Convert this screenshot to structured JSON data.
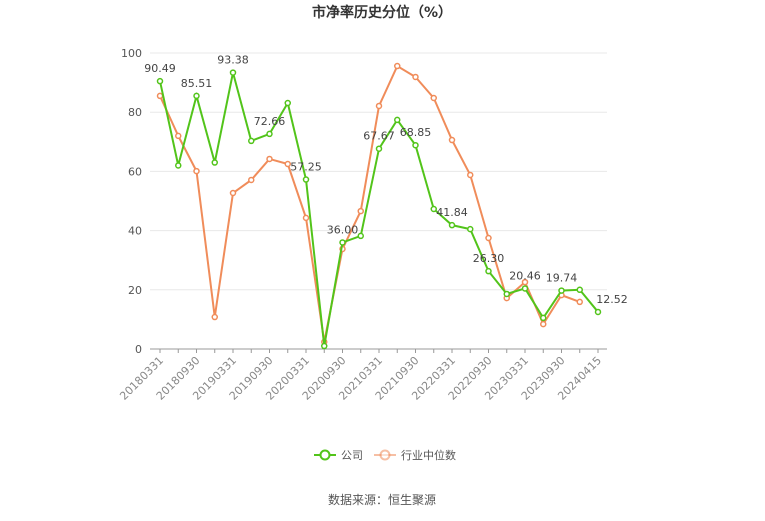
{
  "chart_data": {
    "type": "line",
    "title": "市净率历史分位（%）",
    "categories": [
      "20180331",
      null,
      "20180930",
      null,
      "20190331",
      null,
      "20190930",
      null,
      "20200331",
      null,
      "20200930",
      null,
      "20210331",
      null,
      "20210930",
      null,
      "20220331",
      null,
      "20220930",
      null,
      "20230331",
      null,
      "20230930",
      null,
      "20240415"
    ],
    "series": [
      {
        "name": "公司",
        "color": "#52c41a",
        "values": [
          90.49,
          62,
          85.51,
          63,
          93.38,
          70.3,
          72.66,
          83.1,
          57.25,
          1,
          36.0,
          38.2,
          67.67,
          77.4,
          68.85,
          47.3,
          41.84,
          40.5,
          26.3,
          18.6,
          20.46,
          10.5,
          19.74,
          20,
          12.52
        ],
        "value_labels": [
          "90.49",
          null,
          "85.51",
          null,
          "93.38",
          null,
          "72.66",
          null,
          "57.25",
          null,
          "36.00",
          null,
          "67.67",
          null,
          "68.85",
          null,
          "41.84",
          null,
          "26.30",
          null,
          "20.46",
          null,
          "19.74",
          null,
          "12.52"
        ]
      },
      {
        "name": "行业中位数",
        "color": "#f08c5a",
        "values": [
          85.5,
          72,
          60.1,
          10.8,
          52.7,
          57.1,
          64.2,
          62.5,
          44.3,
          2.4,
          33.8,
          46.6,
          82.1,
          95.6,
          91.9,
          84.8,
          70.6,
          58.8,
          37.5,
          17.2,
          22.6,
          8.4,
          18.2,
          15.9,
          null
        ]
      }
    ],
    "ylim": [
      0,
      100
    ],
    "yticks": [
      0,
      20,
      40,
      60,
      80,
      100
    ],
    "grid": true,
    "source": "数据来源：恒生聚源"
  }
}
